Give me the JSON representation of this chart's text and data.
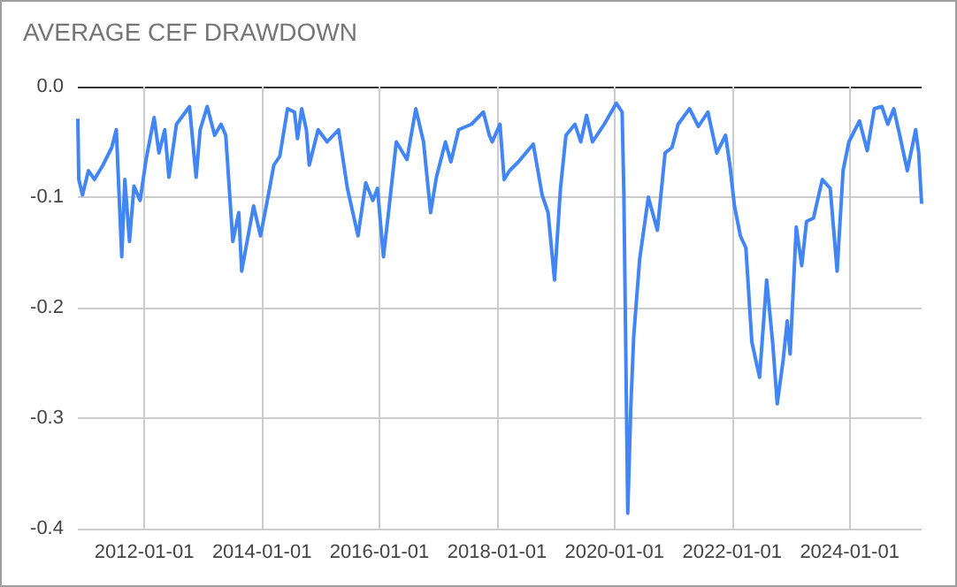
{
  "chart_data": {
    "type": "line",
    "title": "AVERAGE CEF DRAWDOWN",
    "x": [
      "2010-11-14",
      "2010-11-20",
      "2010-12-13",
      "2011-01-19",
      "2011-02-25",
      "2011-04-19",
      "2011-06-13",
      "2011-07-11",
      "2011-08-14",
      "2011-09-02",
      "2011-10-01",
      "2011-10-29",
      "2011-12-06",
      "2012-01-12",
      "2012-03-02",
      "2012-04-01",
      "2012-05-07",
      "2012-06-02",
      "2012-07-19",
      "2012-10-08",
      "2012-11-18",
      "2012-12-13",
      "2013-01-26",
      "2013-03-13",
      "2013-04-22",
      "2013-05-21",
      "2013-07-04",
      "2013-08-10",
      "2013-08-28",
      "2013-11-10",
      "2013-12-23",
      "2014-02-10",
      "2014-03-16",
      "2014-04-22",
      "2014-06-09",
      "2014-07-22",
      "2014-08-10",
      "2014-09-05",
      "2014-10-04",
      "2014-10-22",
      "2014-12-16",
      "2015-02-10",
      "2015-04-22",
      "2015-06-16",
      "2015-08-21",
      "2015-10-08",
      "2015-11-21",
      "2015-12-20",
      "2016-01-26",
      "2016-03-02",
      "2016-04-15",
      "2016-06-20",
      "2016-08-14",
      "2016-10-01",
      "2016-11-14",
      "2016-12-20",
      "2017-02-14",
      "2017-03-20",
      "2017-05-07",
      "2017-07-26",
      "2017-10-08",
      "2017-11-14",
      "2017-12-02",
      "2018-01-19",
      "2018-02-14",
      "2018-03-20",
      "2018-05-14",
      "2018-08-14",
      "2018-10-08",
      "2018-11-14",
      "2018-12-24",
      "2019-01-30",
      "2019-03-05",
      "2019-04-30",
      "2019-06-05",
      "2019-07-11",
      "2019-08-17",
      "2019-10-29",
      "2020-01-12",
      "2020-02-17",
      "2020-02-28",
      "2020-03-23",
      "2020-04-11",
      "2020-04-29",
      "2020-06-05",
      "2020-07-29",
      "2020-09-23",
      "2020-11-10",
      "2020-12-23",
      "2021-01-30",
      "2021-04-11",
      "2021-06-05",
      "2021-08-03",
      "2021-09-27",
      "2021-11-21",
      "2021-12-20",
      "2022-01-15",
      "2022-02-21",
      "2022-03-27",
      "2022-05-03",
      "2022-06-20",
      "2022-08-03",
      "2022-09-09",
      "2022-10-08",
      "2022-11-14",
      "2022-12-09",
      "2022-12-27",
      "2023-02-03",
      "2023-03-09",
      "2023-04-08",
      "2023-05-21",
      "2023-07-15",
      "2023-09-02",
      "2023-10-15",
      "2023-11-21",
      "2023-12-27",
      "2024-03-02",
      "2024-04-19",
      "2024-06-02",
      "2024-07-19",
      "2024-08-25",
      "2024-10-01",
      "2024-11-07",
      "2024-12-24",
      "2025-02-14",
      "2025-03-05",
      "2025-03-23"
    ],
    "series": [
      {
        "color": "#4285f4",
        "values": [
          -0.029,
          -0.084,
          -0.098,
          -0.076,
          -0.084,
          -0.071,
          -0.055,
          -0.039,
          -0.154,
          -0.084,
          -0.14,
          -0.09,
          -0.103,
          -0.066,
          -0.028,
          -0.06,
          -0.039,
          -0.082,
          -0.034,
          -0.018,
          -0.082,
          -0.039,
          -0.018,
          -0.044,
          -0.034,
          -0.044,
          -0.14,
          -0.114,
          -0.167,
          -0.108,
          -0.135,
          -0.098,
          -0.071,
          -0.063,
          -0.02,
          -0.023,
          -0.047,
          -0.02,
          -0.039,
          -0.071,
          -0.039,
          -0.05,
          -0.039,
          -0.092,
          -0.135,
          -0.087,
          -0.103,
          -0.092,
          -0.154,
          -0.108,
          -0.05,
          -0.066,
          -0.02,
          -0.05,
          -0.114,
          -0.082,
          -0.05,
          -0.068,
          -0.039,
          -0.034,
          -0.023,
          -0.044,
          -0.05,
          -0.034,
          -0.084,
          -0.076,
          -0.068,
          -0.052,
          -0.098,
          -0.114,
          -0.175,
          -0.092,
          -0.044,
          -0.034,
          -0.05,
          -0.026,
          -0.05,
          -0.034,
          -0.015,
          -0.023,
          -0.098,
          -0.386,
          -0.29,
          -0.226,
          -0.156,
          -0.1,
          -0.13,
          -0.06,
          -0.055,
          -0.034,
          -0.02,
          -0.036,
          -0.023,
          -0.06,
          -0.044,
          -0.074,
          -0.108,
          -0.135,
          -0.146,
          -0.231,
          -0.263,
          -0.175,
          -0.231,
          -0.287,
          -0.247,
          -0.212,
          -0.242,
          -0.127,
          -0.162,
          -0.122,
          -0.119,
          -0.084,
          -0.092,
          -0.167,
          -0.076,
          -0.05,
          -0.031,
          -0.058,
          -0.02,
          -0.018,
          -0.034,
          -0.02,
          -0.044,
          -0.076,
          -0.039,
          -0.06,
          -0.106
        ]
      }
    ],
    "xlim": [
      "2010-11-14",
      "2025-03-23"
    ],
    "xticks": [
      "2012-01-01",
      "2014-01-01",
      "2016-01-01",
      "2018-01-01",
      "2020-01-01",
      "2022-01-01",
      "2024-01-01"
    ],
    "ylim": [
      -0.4,
      0
    ],
    "yticks": [
      -0.4,
      -0.3,
      -0.2,
      -0.1,
      {
        "value": 0,
        "label": "0.0"
      }
    ],
    "grid": true
  }
}
